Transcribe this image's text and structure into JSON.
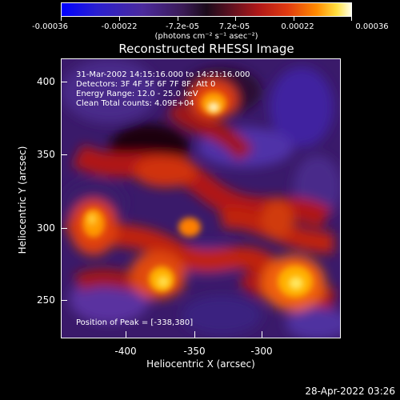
{
  "colorbar": {
    "tick_labels": [
      "-0.00036",
      "-0.00022",
      "-7.2e-05",
      "7.2e-05",
      "0.00022",
      "0.00036"
    ],
    "units_label": "(photons cm⁻² s⁻¹ asec⁻²)"
  },
  "title": "Reconstructed RHESSI Image",
  "annotations": {
    "time_range": "31-Mar-2002 14:15:16.000 to 14:21:16.000",
    "detectors": "Detectors: 3F 4F 5F 6F 7F 8F, Att 0",
    "energy": "Energy Range: 12.0 - 25.0 keV",
    "method": "Clean    Total counts: 4.09E+04",
    "peak": "Position of Peak = [-338,380]"
  },
  "axes": {
    "x_label": "Heliocentric X (arcsec)",
    "y_label": "Heliocentric Y (arcsec)",
    "x_ticks": [
      "-400",
      "-350",
      "-300"
    ],
    "y_ticks": [
      "400",
      "350",
      "300",
      "250"
    ]
  },
  "timestamp": "28-Apr-2022 03:26"
}
